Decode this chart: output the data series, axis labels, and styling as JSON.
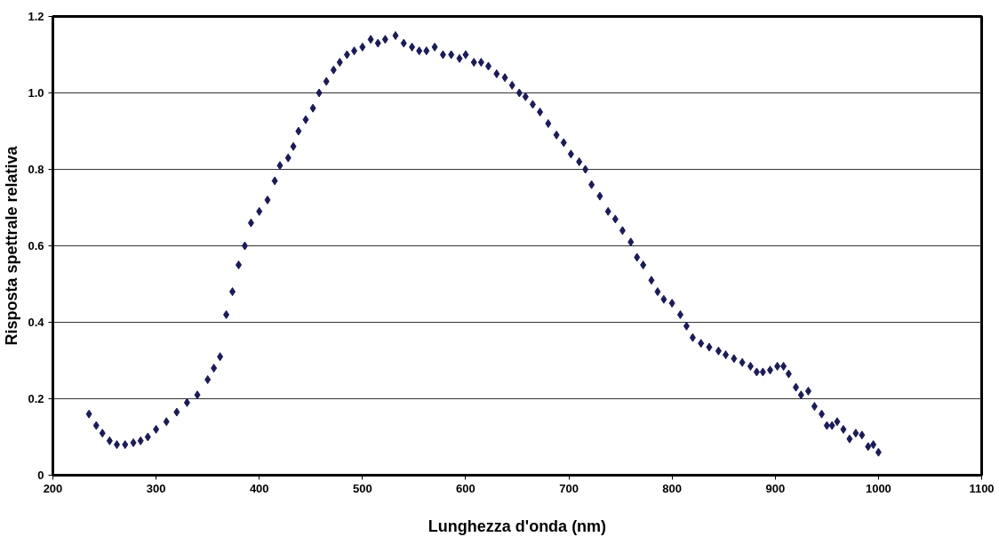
{
  "chart_data": {
    "type": "scatter",
    "xlabel": "Lunghezza d'onda (nm)",
    "ylabel": "Risposta spettrale relativa",
    "xlim": [
      200,
      1100
    ],
    "xticks": [
      200,
      300,
      400,
      500,
      600,
      700,
      800,
      900,
      1000,
      1100
    ],
    "ylim": [
      0,
      1.2
    ],
    "yticks": [
      0,
      0.2,
      0.4,
      0.6,
      0.8,
      {
        "value": 1,
        "label": "1.0"
      },
      1.2
    ],
    "grid": "y",
    "marker": "diamond",
    "series": [
      {
        "color": "#1a1a5e",
        "x": [
          235,
          242,
          248,
          255,
          262,
          270,
          278,
          285,
          292,
          300,
          310,
          320,
          330,
          340,
          350,
          356,
          362,
          368,
          374,
          380,
          386,
          392,
          400,
          408,
          415,
          420,
          428,
          433,
          438,
          445,
          452,
          458,
          465,
          472,
          478,
          485,
          492,
          500,
          508,
          515,
          522,
          532,
          540,
          548,
          555,
          562,
          570,
          578,
          586,
          594,
          600,
          608,
          615,
          622,
          630,
          638,
          645,
          652,
          658,
          665,
          672,
          680,
          688,
          695,
          702,
          710,
          716,
          722,
          730,
          738,
          745,
          752,
          760,
          766,
          772,
          780,
          786,
          792,
          800,
          808,
          814,
          820,
          828,
          836,
          845,
          852,
          860,
          868,
          876,
          882,
          888,
          895,
          902,
          908,
          913,
          920,
          925,
          932,
          938,
          945,
          950,
          955,
          960,
          966,
          972,
          978,
          984,
          990,
          995,
          1000
        ],
        "values": [
          0.16,
          0.13,
          0.11,
          0.09,
          0.08,
          0.08,
          0.085,
          0.09,
          0.1,
          0.12,
          0.14,
          0.165,
          0.19,
          0.21,
          0.25,
          0.28,
          0.31,
          0.42,
          0.48,
          0.55,
          0.6,
          0.66,
          0.69,
          0.72,
          0.77,
          0.81,
          0.83,
          0.86,
          0.9,
          0.93,
          0.96,
          1.0,
          1.03,
          1.06,
          1.08,
          1.1,
          1.11,
          1.12,
          1.14,
          1.13,
          1.14,
          1.15,
          1.13,
          1.12,
          1.11,
          1.11,
          1.12,
          1.1,
          1.1,
          1.09,
          1.1,
          1.08,
          1.08,
          1.07,
          1.05,
          1.04,
          1.02,
          1.0,
          0.99,
          0.97,
          0.95,
          0.92,
          0.89,
          0.87,
          0.84,
          0.82,
          0.8,
          0.76,
          0.73,
          0.69,
          0.67,
          0.64,
          0.61,
          0.57,
          0.55,
          0.51,
          0.48,
          0.46,
          0.45,
          0.42,
          0.39,
          0.36,
          0.345,
          0.335,
          0.325,
          0.315,
          0.305,
          0.295,
          0.285,
          0.27,
          0.27,
          0.275,
          0.285,
          0.285,
          0.265,
          0.23,
          0.21,
          0.22,
          0.18,
          0.16,
          0.13,
          0.13,
          0.14,
          0.12,
          0.095,
          0.11,
          0.105,
          0.075,
          0.08,
          0.06
        ]
      }
    ]
  }
}
